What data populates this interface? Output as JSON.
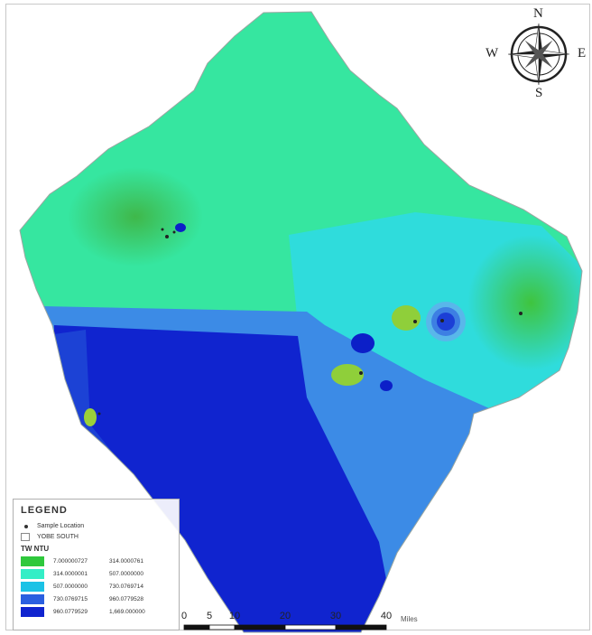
{
  "compass": {
    "north": "N",
    "south": "S",
    "east": "E",
    "west": "W"
  },
  "legend": {
    "title": "LEGEND",
    "sample_label": "Sample Location",
    "boundary_label": "YOBE SOUTH",
    "variable": "TW NTU",
    "classes": [
      {
        "min": "7.000000727",
        "max": "314.0000761",
        "color": "#2fc83c"
      },
      {
        "min": "314.0000001",
        "max": "507.0000000",
        "color": "#34eec6"
      },
      {
        "min": "507.0000000",
        "max": "730.0769714",
        "color": "#1bc2e6"
      },
      {
        "min": "730.0769715",
        "max": "960.0779528",
        "color": "#2a5fe0"
      },
      {
        "min": "960.0779529",
        "max": "1,669.000000",
        "color": "#1024cf"
      }
    ]
  },
  "scalebar": {
    "ticks": [
      0,
      5,
      10,
      20,
      30,
      40
    ],
    "labels": [
      "0",
      "5",
      "10",
      "20",
      "30",
      "40"
    ],
    "unit": "Miles"
  }
}
